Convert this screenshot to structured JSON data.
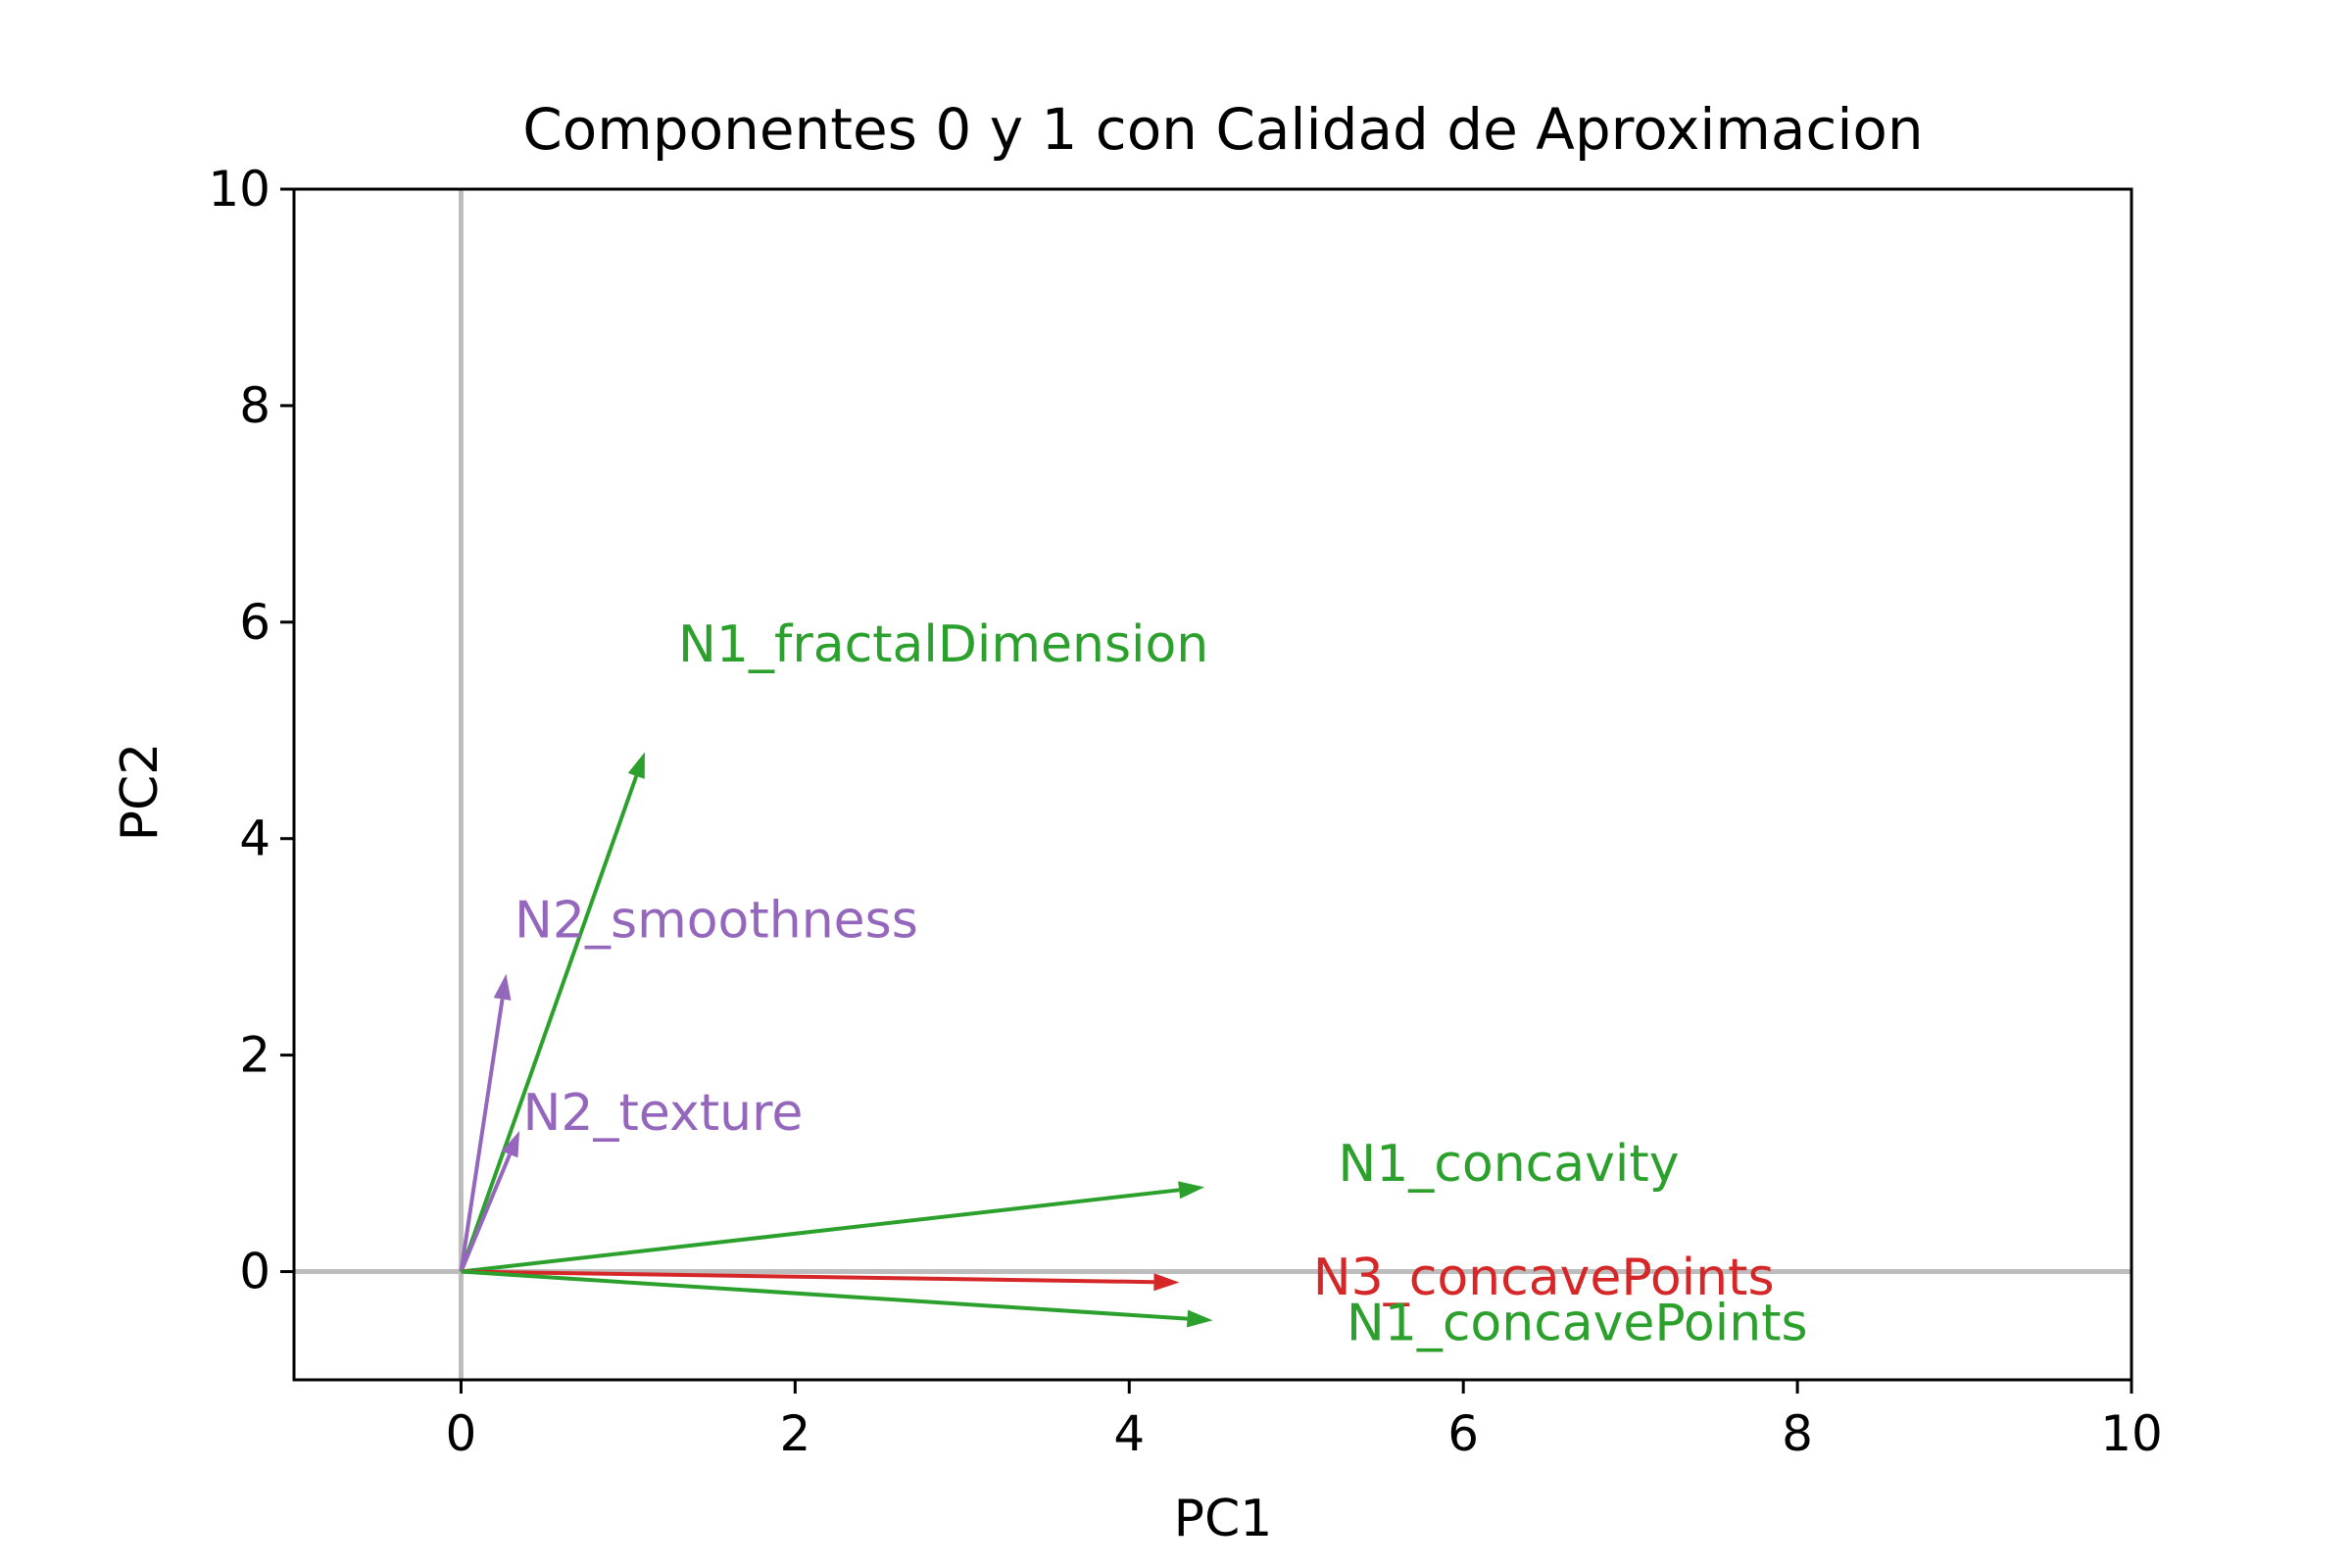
{
  "chart_data": {
    "type": "vector",
    "title": "Componentes 0 y 1 con Calidad de Aproximacion",
    "xlabel": "PC1",
    "ylabel": "PC2",
    "xlim": [
      -1,
      10
    ],
    "ylim": [
      -1,
      10
    ],
    "xticks": [
      "0",
      "2",
      "4",
      "6",
      "8",
      "10"
    ],
    "yticks": [
      "0",
      "2",
      "4",
      "6",
      "8",
      "10"
    ],
    "grid": false,
    "reference_lines": [
      "x=0",
      "y=0"
    ],
    "reference_line_color": "#bdbdbd",
    "arrows": [
      {
        "label": "N1_fractalDimension",
        "x": 1.1,
        "y": 4.8,
        "label_x": 1.3,
        "label_y": 5.8,
        "color": "#2ca02c"
      },
      {
        "label": "N2_smoothness",
        "x": 0.27,
        "y": 2.75,
        "label_x": 0.32,
        "label_y": 3.25,
        "color": "#9467bd"
      },
      {
        "label": "N2_texture",
        "x": 0.35,
        "y": 1.3,
        "label_x": 0.37,
        "label_y": 1.47,
        "color": "#9467bd"
      },
      {
        "label": "N1_concavity",
        "x": 4.45,
        "y": 0.78,
        "label_x": 5.25,
        "label_y": 1.0,
        "color": "#2ca02c"
      },
      {
        "label": "N3_concavePoints",
        "x": 4.3,
        "y": -0.1,
        "label_x": 5.1,
        "label_y": -0.05,
        "color": "#d62728"
      },
      {
        "label": "N1_concavePoints",
        "x": 4.5,
        "y": -0.45,
        "label_x": 5.3,
        "label_y": -0.47,
        "color": "#2ca02c"
      }
    ]
  }
}
